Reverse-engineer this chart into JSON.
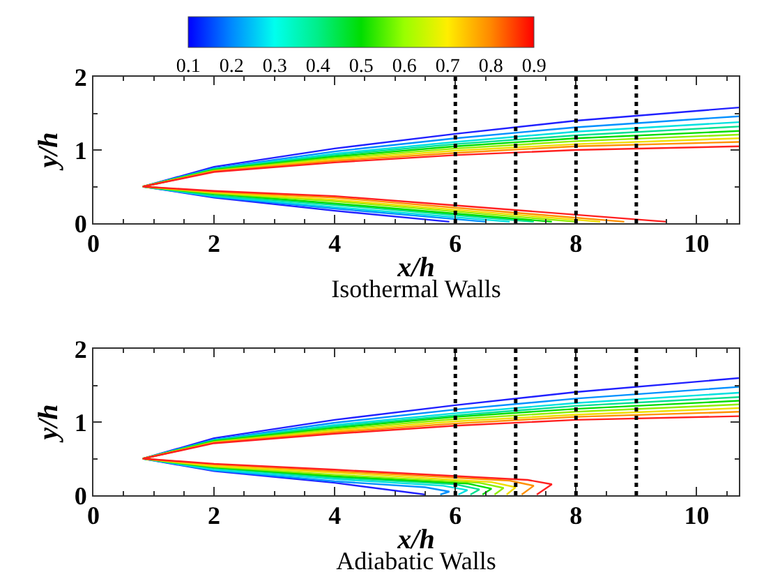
{
  "chart_data": [
    {
      "type": "line",
      "title": "Isothermal Walls",
      "xlabel": "x/h",
      "ylabel": "y/h",
      "xlim": [
        0,
        10.7
      ],
      "xticks": [
        0,
        2,
        4,
        6,
        8,
        10
      ],
      "ylim": [
        0,
        2
      ],
      "yticks": [
        0,
        1,
        2
      ],
      "grid": false,
      "line_style": "solid",
      "marker": "none",
      "clim": [
        0.1,
        0.9
      ],
      "cticks": [
        0.1,
        0.2,
        0.3,
        0.4,
        0.5,
        0.6,
        0.7,
        0.8,
        0.9
      ],
      "ref_lines": [
        {
          "axis": "x",
          "value": 6,
          "color": "#000000",
          "line_style": "dotted"
        },
        {
          "axis": "x",
          "value": 7,
          "color": "#000000",
          "line_style": "dotted"
        },
        {
          "axis": "x",
          "value": 8,
          "color": "#000000",
          "line_style": "dotted"
        },
        {
          "axis": "x",
          "value": 9,
          "color": "#000000",
          "line_style": "dotted"
        }
      ],
      "series": [
        {
          "color": "#2020ff",
          "x": [
            5.9,
            4,
            2,
            0.82,
            2,
            4,
            6,
            8,
            10.7
          ],
          "values": [
            0.02,
            0.17,
            0.35,
            0.5,
            0.77,
            1.02,
            1.22,
            1.4,
            1.58
          ]
        },
        {
          "color": "#0090ff",
          "x": [
            6.5,
            4,
            2,
            0.82,
            2,
            4,
            6,
            8,
            10.7
          ],
          "values": [
            0.02,
            0.2,
            0.36,
            0.5,
            0.75,
            0.98,
            1.16,
            1.31,
            1.46
          ]
        },
        {
          "color": "#00e0e0",
          "x": [
            6.9,
            4,
            2,
            0.82,
            2,
            4,
            6,
            8,
            10.7
          ],
          "values": [
            0.02,
            0.22,
            0.37,
            0.5,
            0.74,
            0.95,
            1.11,
            1.25,
            1.38
          ]
        },
        {
          "color": "#00e090",
          "x": [
            7.3,
            4,
            2,
            0.82,
            2,
            4,
            6,
            8,
            10.7
          ],
          "values": [
            0.02,
            0.25,
            0.38,
            0.5,
            0.74,
            0.93,
            1.08,
            1.2,
            1.32
          ]
        },
        {
          "color": "#00dd00",
          "x": [
            7.6,
            4,
            2,
            0.82,
            2,
            4,
            6,
            8,
            10.7
          ],
          "values": [
            0.02,
            0.27,
            0.4,
            0.5,
            0.73,
            0.91,
            1.05,
            1.16,
            1.26
          ]
        },
        {
          "color": "#90ee00",
          "x": [
            8,
            4,
            2,
            0.82,
            2,
            4,
            6,
            8,
            10.7
          ],
          "values": [
            0.02,
            0.3,
            0.41,
            0.5,
            0.72,
            0.89,
            1.02,
            1.12,
            1.21
          ]
        },
        {
          "color": "#f0dd00",
          "x": [
            8.4,
            4,
            2,
            0.82,
            2,
            4,
            6,
            8,
            10.7
          ],
          "values": [
            0.02,
            0.32,
            0.42,
            0.5,
            0.71,
            0.87,
            0.99,
            1.08,
            1.16
          ]
        },
        {
          "color": "#ff9000",
          "x": [
            8.8,
            4,
            2,
            0.82,
            2,
            4,
            6,
            8,
            10.7
          ],
          "values": [
            0.02,
            0.35,
            0.43,
            0.5,
            0.71,
            0.85,
            0.96,
            1.05,
            1.11
          ]
        },
        {
          "color": "#ff2020",
          "x": [
            9.5,
            4,
            2,
            0.82,
            2,
            4,
            6,
            8,
            10.7
          ],
          "values": [
            0.02,
            0.37,
            0.44,
            0.5,
            0.7,
            0.83,
            0.93,
            1.0,
            1.05
          ]
        }
      ]
    },
    {
      "type": "line",
      "title": "Adiabatic Walls",
      "xlabel": "x/h",
      "ylabel": "y/h",
      "xlim": [
        0,
        10.7
      ],
      "xticks": [
        0,
        2,
        4,
        6,
        8,
        10
      ],
      "ylim": [
        0,
        2
      ],
      "yticks": [
        0,
        1,
        2
      ],
      "grid": false,
      "line_style": "solid",
      "marker": "none",
      "ref_lines": [
        {
          "axis": "x",
          "value": 6,
          "color": "#000000",
          "line_style": "dotted"
        },
        {
          "axis": "x",
          "value": 7,
          "color": "#000000",
          "line_style": "dotted"
        },
        {
          "axis": "x",
          "value": 8,
          "color": "#000000",
          "line_style": "dotted"
        },
        {
          "axis": "x",
          "value": 9,
          "color": "#000000",
          "line_style": "dotted"
        }
      ],
      "series": [
        {
          "color": "#2020ff",
          "x": [
            5.5,
            4,
            2,
            0.82,
            2,
            4,
            6,
            8,
            10.7
          ],
          "values": [
            0.01,
            0.17,
            0.33,
            0.5,
            0.78,
            1.03,
            1.23,
            1.41,
            1.6
          ]
        },
        {
          "color": "#0090ff",
          "x": [
            5.75,
            5.9,
            5.5,
            4,
            2,
            0.82,
            2,
            4,
            6,
            8,
            10.7
          ],
          "values": [
            0.01,
            0.05,
            0.11,
            0.19,
            0.34,
            0.5,
            0.76,
            0.99,
            1.17,
            1.32,
            1.48
          ]
        },
        {
          "color": "#00e0e0",
          "x": [
            6.05,
            6.2,
            5.8,
            4,
            2,
            0.82,
            2,
            4,
            6,
            8,
            10.7
          ],
          "values": [
            0.01,
            0.07,
            0.13,
            0.22,
            0.35,
            0.5,
            0.75,
            0.96,
            1.12,
            1.26,
            1.4
          ]
        },
        {
          "color": "#00e090",
          "x": [
            6.25,
            6.4,
            6,
            4,
            2,
            0.82,
            2,
            4,
            6,
            8,
            10.7
          ],
          "values": [
            0.01,
            0.08,
            0.15,
            0.24,
            0.37,
            0.5,
            0.75,
            0.94,
            1.09,
            1.22,
            1.34
          ]
        },
        {
          "color": "#00dd00",
          "x": [
            6.45,
            6.6,
            6.2,
            4,
            2,
            0.82,
            2,
            4,
            6,
            8,
            10.7
          ],
          "values": [
            0.01,
            0.09,
            0.16,
            0.26,
            0.38,
            0.5,
            0.74,
            0.92,
            1.07,
            1.18,
            1.29
          ]
        },
        {
          "color": "#90ee00",
          "x": [
            6.65,
            6.8,
            6.4,
            4,
            2,
            0.82,
            2,
            4,
            6,
            8,
            10.7
          ],
          "values": [
            0.01,
            0.1,
            0.17,
            0.28,
            0.39,
            0.5,
            0.73,
            0.9,
            1.04,
            1.14,
            1.24
          ]
        },
        {
          "color": "#f0dd00",
          "x": [
            6.85,
            7,
            6.6,
            4,
            2,
            0.82,
            2,
            4,
            6,
            8,
            10.7
          ],
          "values": [
            0.01,
            0.11,
            0.18,
            0.31,
            0.4,
            0.5,
            0.72,
            0.88,
            1.01,
            1.1,
            1.19
          ]
        },
        {
          "color": "#ff9000",
          "x": [
            7.1,
            7.3,
            6.9,
            4,
            2,
            0.82,
            2,
            4,
            6,
            8,
            10.7
          ],
          "values": [
            0.01,
            0.13,
            0.2,
            0.33,
            0.42,
            0.5,
            0.72,
            0.86,
            0.98,
            1.07,
            1.14
          ]
        },
        {
          "color": "#ff2020",
          "x": [
            7.35,
            7.6,
            7.2,
            4,
            2,
            0.82,
            2,
            4,
            6,
            8,
            10.7
          ],
          "values": [
            0.01,
            0.15,
            0.21,
            0.35,
            0.43,
            0.5,
            0.71,
            0.84,
            0.95,
            1.03,
            1.08
          ]
        }
      ]
    }
  ]
}
